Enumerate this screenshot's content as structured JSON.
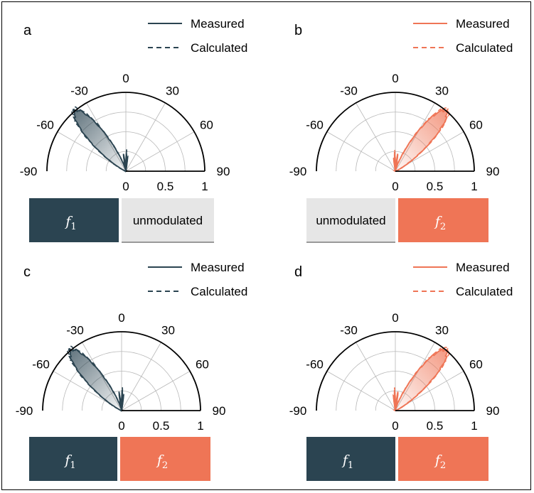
{
  "figure": {
    "legend": {
      "measured": "Measured",
      "calculated": "Calculated"
    },
    "colors": {
      "dark": "#2b4451",
      "orange": "#ef7556",
      "grey_box": "#e6e6e6",
      "grid": "#b8b8b8"
    },
    "angle_tick_labels": [
      "-90",
      "-60",
      "-30",
      "0",
      "30",
      "60",
      "90"
    ],
    "radial_tick_labels": [
      "0",
      "0.5",
      "1"
    ]
  },
  "chart_data": [
    {
      "panel": "a",
      "type": "polar-line",
      "color": "dark",
      "theta_range_deg": [
        -90,
        90
      ],
      "r_range": [
        0,
        1
      ],
      "beam_peak_deg": -40,
      "beam_width_deg": 10,
      "sidelobes": [
        {
          "deg": -8,
          "r": 0.2
        },
        {
          "deg": 2,
          "r": 0.24
        },
        {
          "deg": 7,
          "r": 0.16
        }
      ],
      "series": [
        {
          "name": "Measured",
          "style": "solid"
        },
        {
          "name": "Calculated",
          "style": "dashed"
        }
      ],
      "boxes": [
        {
          "label": "f",
          "sub": "1",
          "style": "dark"
        },
        {
          "label": "unmodulated",
          "style": "grey"
        }
      ]
    },
    {
      "panel": "b",
      "type": "polar-line",
      "color": "orange",
      "theta_range_deg": [
        -90,
        90
      ],
      "r_range": [
        0,
        1
      ],
      "beam_peak_deg": 40,
      "beam_width_deg": 10,
      "sidelobes": [
        {
          "deg": 8,
          "r": 0.2
        },
        {
          "deg": -2,
          "r": 0.24
        },
        {
          "deg": -7,
          "r": 0.16
        }
      ],
      "series": [
        {
          "name": "Measured",
          "style": "solid"
        },
        {
          "name": "Calculated",
          "style": "dashed"
        }
      ],
      "boxes": [
        {
          "label": "unmodulated",
          "style": "grey"
        },
        {
          "label": "f",
          "sub": "2",
          "style": "orange"
        }
      ]
    },
    {
      "panel": "c",
      "type": "polar-line",
      "color": "dark",
      "theta_range_deg": [
        -90,
        90
      ],
      "r_range": [
        0,
        1
      ],
      "beam_peak_deg": -40,
      "beam_width_deg": 10,
      "sidelobes": [
        {
          "deg": -8,
          "r": 0.22
        },
        {
          "deg": 2,
          "r": 0.26
        },
        {
          "deg": 7,
          "r": 0.18
        }
      ],
      "series": [
        {
          "name": "Measured",
          "style": "solid"
        },
        {
          "name": "Calculated",
          "style": "dashed"
        }
      ],
      "boxes": [
        {
          "label": "f",
          "sub": "1",
          "style": "dark"
        },
        {
          "label": "f",
          "sub": "2",
          "style": "orange"
        }
      ]
    },
    {
      "panel": "d",
      "type": "polar-line",
      "color": "orange",
      "theta_range_deg": [
        -90,
        90
      ],
      "r_range": [
        0,
        1
      ],
      "beam_peak_deg": 40,
      "beam_width_deg": 10,
      "sidelobes": [
        {
          "deg": 8,
          "r": 0.22
        },
        {
          "deg": -2,
          "r": 0.26
        },
        {
          "deg": -7,
          "r": 0.18
        }
      ],
      "series": [
        {
          "name": "Measured",
          "style": "solid"
        },
        {
          "name": "Calculated",
          "style": "dashed"
        }
      ],
      "boxes": [
        {
          "label": "f",
          "sub": "1",
          "style": "dark"
        },
        {
          "label": "f",
          "sub": "2",
          "style": "orange"
        }
      ]
    }
  ]
}
